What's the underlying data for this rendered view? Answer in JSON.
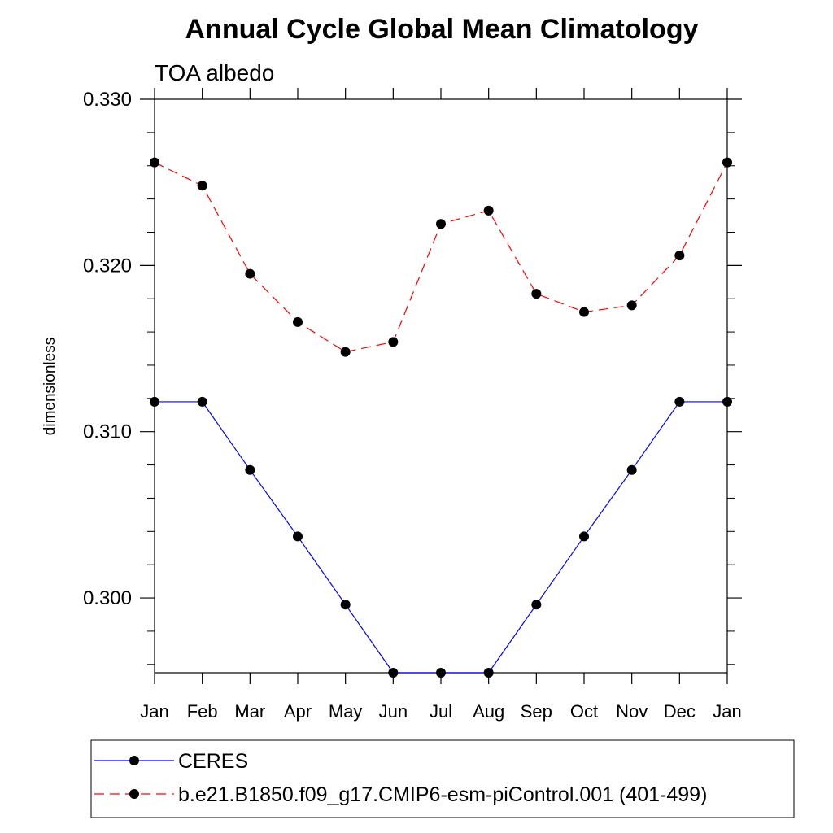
{
  "chart_data": {
    "type": "line",
    "title": "Annual Cycle Global Mean Climatology",
    "subtitle": "TOA albedo",
    "xlabel": "",
    "ylabel": "dimensionless",
    "categories": [
      "Jan",
      "Feb",
      "Mar",
      "Apr",
      "May",
      "Jun",
      "Jul",
      "Aug",
      "Sep",
      "Oct",
      "Nov",
      "Dec",
      "Jan"
    ],
    "ylim": [
      0.2955,
      0.33
    ],
    "yticks": [
      0.3,
      0.31,
      0.32,
      0.33
    ],
    "ytick_labels": [
      "0.300",
      "0.310",
      "0.320",
      "0.330"
    ],
    "minor_ytick_step": 0.002,
    "grid": false,
    "legend_position": "bottom",
    "series": [
      {
        "name": "CERES",
        "color": "#0000ff",
        "line_style": "solid",
        "marker": "filled-circle",
        "values": [
          0.3118,
          0.3118,
          0.3077,
          0.3037,
          0.2996,
          0.2955,
          0.2955,
          0.2955,
          0.2996,
          0.3037,
          0.3077,
          0.3118,
          0.3118
        ]
      },
      {
        "name": "b.e21.B1850.f09_g17.CMIP6-esm-piControl.001 (401-499)",
        "color": "#ff0000",
        "line_style": "dashed",
        "marker": "filled-circle",
        "values": [
          0.3262,
          0.3248,
          0.3195,
          0.3166,
          0.3148,
          0.3154,
          0.3225,
          0.3233,
          0.3183,
          0.3172,
          0.3176,
          0.3206,
          0.3262
        ]
      }
    ]
  }
}
